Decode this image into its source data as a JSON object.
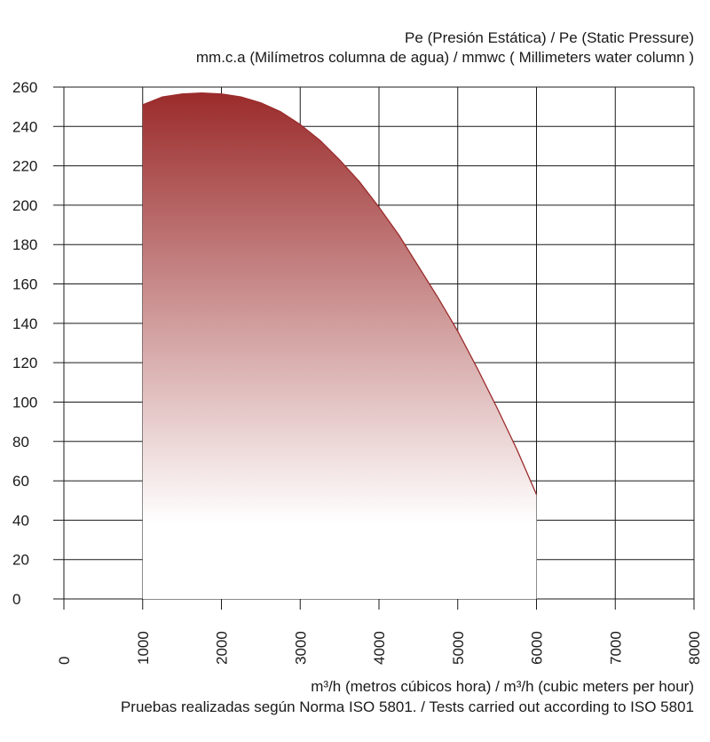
{
  "chart_data": {
    "type": "area",
    "ylabel": [
      "Pe (Presión Estática) /  Pe (Static Pressure)",
      "mm.c.a (Milímetros columna de agua) / mmwc ( Millimeters water column )"
    ],
    "xlabel": "m³/h (metros cúbicos hora) / m³/h (cubic meters per hour)",
    "note": "Pruebas realizadas según Norma ISO 5801. / Tests carried out according to ISO 5801",
    "xlim": [
      0,
      8000
    ],
    "ylim": [
      0,
      260
    ],
    "x_ticks": [
      "0",
      "1000",
      "2000",
      "3000",
      "4000",
      "5000",
      "6000",
      "7000",
      "8000"
    ],
    "y_ticks": [
      "0",
      "20",
      "40",
      "60",
      "80",
      "100",
      "120",
      "140",
      "160",
      "180",
      "200",
      "220",
      "240",
      "260"
    ],
    "grid": true,
    "series": [
      {
        "x": [
          1000,
          1250,
          1500,
          1750,
          2000,
          2250,
          2500,
          2750,
          3000,
          3250,
          3500,
          3750,
          4000,
          4250,
          4500,
          4750,
          5000,
          5250,
          5500,
          5750,
          6000
        ],
        "y": [
          251,
          255,
          256.5,
          257,
          256.5,
          255,
          252,
          247.5,
          241,
          233,
          223,
          212,
          199,
          185,
          169,
          153,
          136,
          117,
          97,
          76,
          53
        ]
      }
    ],
    "colors": {
      "fill_top": "#9b2b2b",
      "fill_bottom": "#ffffff",
      "line": "#9b2b2b",
      "grid": "#1a1a1a"
    }
  }
}
